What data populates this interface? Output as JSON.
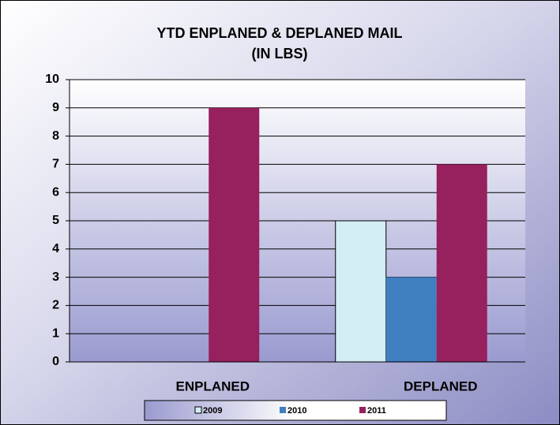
{
  "chart_data": {
    "type": "bar",
    "title": "YTD ENPLANED & DEPLANED MAIL",
    "subtitle": "(IN LBS)",
    "categories": [
      "ENPLANED",
      "DEPLANED"
    ],
    "series": [
      {
        "name": "2009",
        "color": "#d2edf3",
        "values": [
          0,
          5
        ]
      },
      {
        "name": "2010",
        "color": "#3f7fc0",
        "values": [
          0,
          3
        ]
      },
      {
        "name": "2011",
        "color": "#97205e",
        "values": [
          9,
          7
        ]
      }
    ],
    "ylim": [
      0,
      10
    ],
    "yticks": [
      0,
      1,
      2,
      3,
      4,
      5,
      6,
      7,
      8,
      9,
      10
    ],
    "grid": true,
    "legend": "bottom"
  }
}
